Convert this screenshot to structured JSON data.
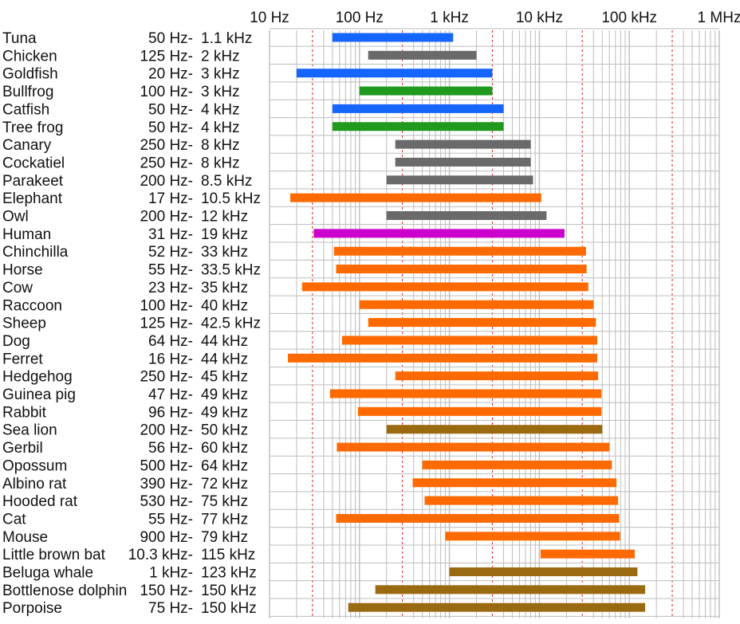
{
  "chart_data": {
    "type": "bar",
    "orientation": "horizontal",
    "scale": "log",
    "title": "",
    "xlabel": "",
    "ylabel": "",
    "xlim_hz": [
      10,
      1000000
    ],
    "grid": true,
    "x_tick_labels": [
      {
        "value": 10,
        "label": "10 Hz"
      },
      {
        "value": 100,
        "label": "100 Hz"
      },
      {
        "value": 1000,
        "label": "1 kHz"
      },
      {
        "value": 10000,
        "label": "10 kHz"
      },
      {
        "value": 100000,
        "label": "100 kHz"
      },
      {
        "value": 1000000,
        "label": "1 MHz"
      }
    ],
    "colors": {
      "blue": "#1565ff",
      "gray": "#6a6a6a",
      "green": "#1f9a1f",
      "orange": "#ff6a00",
      "magenta": "#cc00cc",
      "brown": "#9a6a10",
      "grid": "#bdbdbd",
      "grid_dashed": "#e02020"
    },
    "series": [
      {
        "name": "Tuna",
        "low_label": "50 Hz-",
        "high_label": "1.1 kHz",
        "low": 50,
        "high": 1100,
        "color": "#1565ff"
      },
      {
        "name": "Chicken",
        "low_label": "125 Hz-",
        "high_label": "2 kHz",
        "low": 125,
        "high": 2000,
        "color": "#6a6a6a"
      },
      {
        "name": "Goldfish",
        "low_label": "20 Hz-",
        "high_label": "3 kHz",
        "low": 20,
        "high": 3000,
        "color": "#1565ff"
      },
      {
        "name": "Bullfrog",
        "low_label": "100 Hz-",
        "high_label": "3 kHz",
        "low": 100,
        "high": 3000,
        "color": "#1f9a1f"
      },
      {
        "name": "Catfish",
        "low_label": "50 Hz-",
        "high_label": "4 kHz",
        "low": 50,
        "high": 4000,
        "color": "#1565ff"
      },
      {
        "name": "Tree frog",
        "low_label": "50 Hz-",
        "high_label": "4 kHz",
        "low": 50,
        "high": 4000,
        "color": "#1f9a1f"
      },
      {
        "name": "Canary",
        "low_label": "250 Hz-",
        "high_label": "8 kHz",
        "low": 250,
        "high": 8000,
        "color": "#6a6a6a"
      },
      {
        "name": "Cockatiel",
        "low_label": "250 Hz-",
        "high_label": "8 kHz",
        "low": 250,
        "high": 8000,
        "color": "#6a6a6a"
      },
      {
        "name": "Parakeet",
        "low_label": "200 Hz-",
        "high_label": "8.5 kHz",
        "low": 200,
        "high": 8500,
        "color": "#6a6a6a"
      },
      {
        "name": "Elephant",
        "low_label": "17 Hz-",
        "high_label": "10.5 kHz",
        "low": 17,
        "high": 10500,
        "color": "#ff6a00"
      },
      {
        "name": "Owl",
        "low_label": "200 Hz-",
        "high_label": "12 kHz",
        "low": 200,
        "high": 12000,
        "color": "#6a6a6a"
      },
      {
        "name": "Human",
        "low_label": "31 Hz-",
        "high_label": "19 kHz",
        "low": 31,
        "high": 19000,
        "color": "#cc00cc"
      },
      {
        "name": "Chinchilla",
        "low_label": "52 Hz-",
        "high_label": "33 kHz",
        "low": 52,
        "high": 33000,
        "color": "#ff6a00"
      },
      {
        "name": "Horse",
        "low_label": "55 Hz-",
        "high_label": "33.5 kHz",
        "low": 55,
        "high": 33500,
        "color": "#ff6a00"
      },
      {
        "name": "Cow",
        "low_label": "23 Hz-",
        "high_label": "35 kHz",
        "low": 23,
        "high": 35000,
        "color": "#ff6a00"
      },
      {
        "name": "Raccoon",
        "low_label": "100 Hz-",
        "high_label": "40 kHz",
        "low": 100,
        "high": 40000,
        "color": "#ff6a00"
      },
      {
        "name": "Sheep",
        "low_label": "125 Hz-",
        "high_label": "42.5 kHz",
        "low": 125,
        "high": 42500,
        "color": "#ff6a00"
      },
      {
        "name": "Dog",
        "low_label": "64 Hz-",
        "high_label": "44 kHz",
        "low": 64,
        "high": 44000,
        "color": "#ff6a00"
      },
      {
        "name": "Ferret",
        "low_label": "16 Hz-",
        "high_label": "44 kHz",
        "low": 16,
        "high": 44000,
        "color": "#ff6a00"
      },
      {
        "name": "Hedgehog",
        "low_label": "250 Hz-",
        "high_label": "45 kHz",
        "low": 250,
        "high": 45000,
        "color": "#ff6a00"
      },
      {
        "name": "Guinea pig",
        "low_label": "47 Hz-",
        "high_label": "49 kHz",
        "low": 47,
        "high": 49000,
        "color": "#ff6a00"
      },
      {
        "name": "Rabbit",
        "low_label": "96 Hz-",
        "high_label": "49 kHz",
        "low": 96,
        "high": 49000,
        "color": "#ff6a00"
      },
      {
        "name": "Sea lion",
        "low_label": "200 Hz-",
        "high_label": "50 kHz",
        "low": 200,
        "high": 50000,
        "color": "#9a6a10"
      },
      {
        "name": "Gerbil",
        "low_label": "56 Hz-",
        "high_label": "60 kHz",
        "low": 56,
        "high": 60000,
        "color": "#ff6a00"
      },
      {
        "name": "Opossum",
        "low_label": "500 Hz-",
        "high_label": "64 kHz",
        "low": 500,
        "high": 64000,
        "color": "#ff6a00"
      },
      {
        "name": "Albino rat",
        "low_label": "390 Hz-",
        "high_label": "72 kHz",
        "low": 390,
        "high": 72000,
        "color": "#ff6a00"
      },
      {
        "name": "Hooded rat",
        "low_label": "530 Hz-",
        "high_label": "75 kHz",
        "low": 530,
        "high": 75000,
        "color": "#ff6a00"
      },
      {
        "name": "Cat",
        "low_label": "55 Hz-",
        "high_label": "77 kHz",
        "low": 55,
        "high": 77000,
        "color": "#ff6a00"
      },
      {
        "name": "Mouse",
        "low_label": "900 Hz-",
        "high_label": "79 kHz",
        "low": 900,
        "high": 79000,
        "color": "#ff6a00"
      },
      {
        "name": "Little brown bat",
        "low_label": "10.3 kHz-",
        "high_label": "115 kHz",
        "low": 10300,
        "high": 115000,
        "color": "#ff6a00"
      },
      {
        "name": "Beluga whale",
        "low_label": "1 kHz-",
        "high_label": "123 kHz",
        "low": 1000,
        "high": 123000,
        "color": "#9a6a10"
      },
      {
        "name": "Bottlenose dolphin",
        "low_label": "150 Hz-",
        "high_label": "150 kHz",
        "low": 150,
        "high": 150000,
        "color": "#9a6a10"
      },
      {
        "name": "Porpoise",
        "low_label": "75 Hz-",
        "high_label": "150 kHz",
        "low": 75,
        "high": 150000,
        "color": "#9a6a10"
      }
    ]
  }
}
